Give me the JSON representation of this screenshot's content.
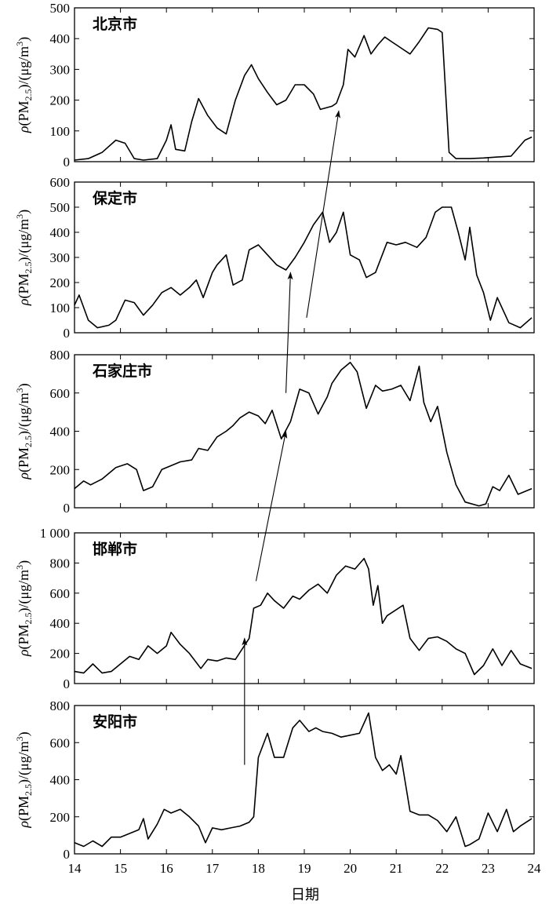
{
  "chart_data": {
    "type": "line",
    "x_label": "日期",
    "x_ticks": [
      "14",
      "15",
      "16",
      "17",
      "18",
      "19",
      "20",
      "21",
      "22",
      "23",
      "24"
    ],
    "xlim": [
      14,
      24
    ],
    "panels": [
      {
        "name": "北京市",
        "ylabel": "ρ(PM2.5)/(μg/m3)",
        "ylim": [
          0,
          500
        ],
        "yticks": [
          0,
          100,
          200,
          300,
          400,
          500
        ],
        "ytick_labels": [
          "0",
          "100",
          "200",
          "300",
          "400",
          "500"
        ],
        "x": [
          14.0,
          14.3,
          14.6,
          14.9,
          15.1,
          15.3,
          15.5,
          15.8,
          16.0,
          16.1,
          16.2,
          16.4,
          16.55,
          16.7,
          16.9,
          17.1,
          17.3,
          17.5,
          17.7,
          17.85,
          18.0,
          18.2,
          18.4,
          18.6,
          18.8,
          19.0,
          19.2,
          19.35,
          19.6,
          19.7,
          19.85,
          19.95,
          20.1,
          20.3,
          20.45,
          20.6,
          20.75,
          20.9,
          21.1,
          21.3,
          21.5,
          21.7,
          21.9,
          22.0,
          22.15,
          22.3,
          22.6,
          22.9,
          23.2,
          23.5,
          23.8,
          23.95
        ],
        "y": [
          5,
          10,
          30,
          70,
          60,
          10,
          5,
          10,
          70,
          120,
          40,
          35,
          130,
          205,
          150,
          110,
          90,
          200,
          280,
          315,
          270,
          225,
          185,
          200,
          250,
          250,
          220,
          170,
          180,
          190,
          250,
          365,
          340,
          410,
          350,
          380,
          405,
          390,
          370,
          350,
          390,
          435,
          430,
          420,
          30,
          10,
          10,
          12,
          15,
          18,
          70,
          80
        ]
      },
      {
        "name": "保定市",
        "ylabel": "ρ(PM2.5)/(μg/m3)",
        "ylim": [
          0,
          600
        ],
        "yticks": [
          0,
          100,
          200,
          300,
          400,
          500,
          600
        ],
        "ytick_labels": [
          "0",
          "100",
          "200",
          "300",
          "400",
          "500",
          "600"
        ],
        "x": [
          14.0,
          14.1,
          14.3,
          14.5,
          14.75,
          14.9,
          15.1,
          15.3,
          15.5,
          15.7,
          15.9,
          16.1,
          16.3,
          16.5,
          16.65,
          16.8,
          17.0,
          17.1,
          17.3,
          17.45,
          17.65,
          17.8,
          18.0,
          18.2,
          18.4,
          18.6,
          18.8,
          19.0,
          19.2,
          19.4,
          19.55,
          19.7,
          19.85,
          20.0,
          20.2,
          20.35,
          20.55,
          20.8,
          21.0,
          21.2,
          21.45,
          21.65,
          21.85,
          22.0,
          22.2,
          22.35,
          22.5,
          22.6,
          22.75,
          22.9,
          23.05,
          23.2,
          23.45,
          23.7,
          23.95
        ],
        "y": [
          110,
          150,
          50,
          20,
          30,
          50,
          130,
          120,
          70,
          110,
          160,
          180,
          150,
          180,
          210,
          140,
          240,
          270,
          310,
          190,
          210,
          330,
          350,
          310,
          270,
          250,
          300,
          360,
          430,
          480,
          360,
          400,
          480,
          310,
          290,
          220,
          240,
          360,
          350,
          360,
          340,
          380,
          480,
          500,
          500,
          400,
          290,
          420,
          230,
          160,
          50,
          140,
          40,
          20,
          60
        ]
      },
      {
        "name": "石家庄市",
        "ylabel": "ρ(PM2.5)/(μg/m3)",
        "ylim": [
          0,
          800
        ],
        "yticks": [
          0,
          200,
          400,
          600,
          800
        ],
        "ytick_labels": [
          "0",
          "200",
          "400",
          "600",
          "800"
        ],
        "x": [
          14.0,
          14.2,
          14.35,
          14.6,
          14.9,
          15.15,
          15.35,
          15.5,
          15.7,
          15.9,
          16.1,
          16.3,
          16.55,
          16.7,
          16.9,
          17.1,
          17.3,
          17.45,
          17.6,
          17.8,
          18.0,
          18.15,
          18.3,
          18.5,
          18.7,
          18.9,
          19.1,
          19.3,
          19.5,
          19.6,
          19.8,
          20.0,
          20.15,
          20.35,
          20.55,
          20.7,
          20.9,
          21.1,
          21.3,
          21.5,
          21.6,
          21.75,
          21.9,
          22.1,
          22.3,
          22.5,
          22.8,
          22.95,
          23.1,
          23.25,
          23.45,
          23.65,
          23.95
        ],
        "y": [
          100,
          140,
          120,
          150,
          210,
          230,
          200,
          90,
          110,
          200,
          220,
          240,
          250,
          310,
          300,
          370,
          400,
          430,
          470,
          500,
          480,
          440,
          510,
          360,
          450,
          620,
          600,
          490,
          580,
          650,
          720,
          760,
          710,
          520,
          640,
          610,
          620,
          640,
          560,
          740,
          550,
          450,
          530,
          290,
          120,
          30,
          10,
          20,
          110,
          90,
          170,
          70,
          100
        ]
      },
      {
        "name": "邯郸市",
        "ylabel": "ρ(PM2.5)/(μg/m3)",
        "ylim": [
          0,
          1000
        ],
        "yticks": [
          0,
          200,
          400,
          600,
          800,
          1000
        ],
        "ytick_labels": [
          "0",
          "200",
          "400",
          "600",
          "800",
          "1 000"
        ],
        "x": [
          14.0,
          14.2,
          14.4,
          14.6,
          14.8,
          15.0,
          15.2,
          15.4,
          15.6,
          15.8,
          16.0,
          16.1,
          16.3,
          16.5,
          16.75,
          16.9,
          17.1,
          17.3,
          17.5,
          17.65,
          17.8,
          17.9,
          18.05,
          18.2,
          18.35,
          18.55,
          18.75,
          18.9,
          19.1,
          19.3,
          19.5,
          19.7,
          19.9,
          20.1,
          20.3,
          20.4,
          20.5,
          20.6,
          20.7,
          20.8,
          20.95,
          21.15,
          21.3,
          21.5,
          21.7,
          21.9,
          22.1,
          22.3,
          22.5,
          22.7,
          22.9,
          23.1,
          23.3,
          23.5,
          23.7,
          23.95
        ],
        "y": [
          80,
          70,
          130,
          70,
          80,
          130,
          180,
          160,
          250,
          200,
          250,
          340,
          260,
          200,
          100,
          160,
          150,
          170,
          160,
          230,
          300,
          500,
          520,
          600,
          550,
          500,
          580,
          560,
          620,
          660,
          600,
          720,
          780,
          760,
          830,
          760,
          520,
          650,
          400,
          450,
          480,
          520,
          300,
          220,
          300,
          310,
          280,
          230,
          200,
          60,
          120,
          230,
          120,
          220,
          130,
          100
        ]
      },
      {
        "name": "安阳市",
        "ylabel": "ρ(PM2.5)/(μg/m3)",
        "ylim": [
          0,
          800
        ],
        "yticks": [
          0,
          200,
          400,
          600,
          800
        ],
        "ytick_labels": [
          "0",
          "200",
          "400",
          "600",
          "800"
        ],
        "x": [
          14.0,
          14.2,
          14.4,
          14.6,
          14.8,
          15.0,
          15.2,
          15.4,
          15.5,
          15.6,
          15.8,
          15.95,
          16.1,
          16.3,
          16.5,
          16.7,
          16.85,
          17.0,
          17.2,
          17.4,
          17.6,
          17.8,
          17.9,
          18.0,
          18.2,
          18.35,
          18.55,
          18.75,
          18.9,
          19.1,
          19.25,
          19.4,
          19.6,
          19.8,
          20.0,
          20.2,
          20.4,
          20.55,
          20.7,
          20.85,
          21.0,
          21.1,
          21.3,
          21.5,
          21.7,
          21.9,
          22.1,
          22.3,
          22.5,
          22.6,
          22.8,
          23.0,
          23.2,
          23.4,
          23.55,
          23.7,
          23.95
        ],
        "y": [
          60,
          40,
          70,
          40,
          90,
          90,
          110,
          130,
          190,
          80,
          160,
          240,
          220,
          240,
          200,
          150,
          60,
          140,
          130,
          140,
          150,
          170,
          200,
          520,
          650,
          520,
          520,
          680,
          720,
          660,
          680,
          660,
          650,
          630,
          640,
          650,
          760,
          520,
          450,
          480,
          430,
          530,
          230,
          210,
          210,
          180,
          120,
          200,
          40,
          50,
          80,
          220,
          120,
          240,
          120,
          150,
          190
        ]
      }
    ],
    "arrows": [
      {
        "from_panel": 4,
        "from": [
          17.7,
          480
        ],
        "to_panel": 3,
        "to": [
          17.7,
          300
        ]
      },
      {
        "from_panel": 3,
        "from": [
          17.95,
          680
        ],
        "to_panel": 2,
        "to": [
          18.6,
          400
        ]
      },
      {
        "from_panel": 2,
        "from": [
          18.6,
          600
        ],
        "to_panel": 1,
        "to": [
          18.7,
          240
        ]
      },
      {
        "from_panel": 1,
        "from": [
          19.05,
          60
        ],
        "to_panel": 0,
        "to": [
          19.75,
          165
        ]
      }
    ]
  }
}
